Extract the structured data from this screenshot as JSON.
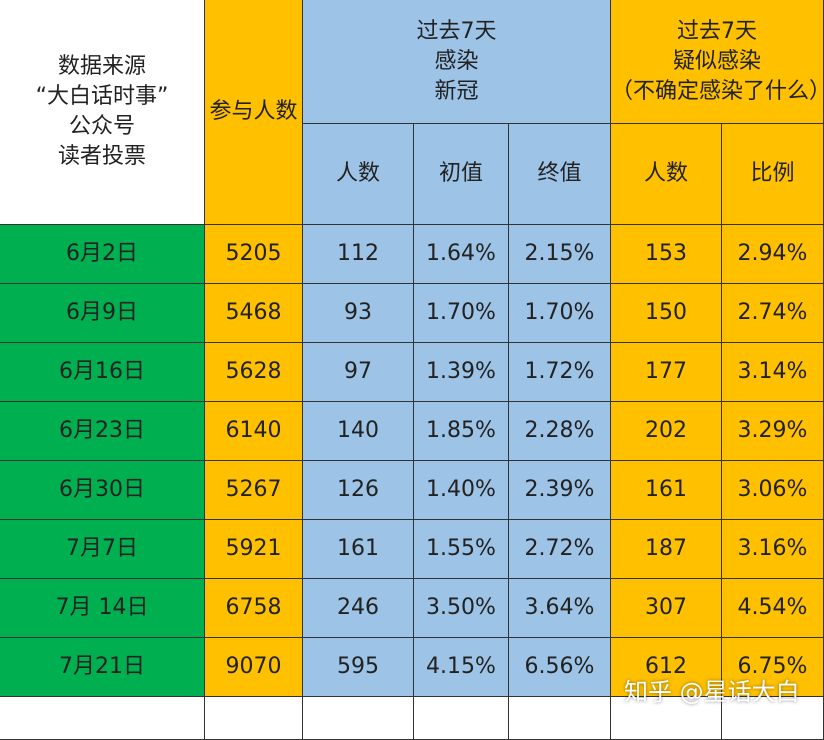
{
  "header": {
    "source": [
      "数据来源",
      "“大白话时事”",
      "公众号",
      "读者投票"
    ],
    "participants": "参与人数",
    "confirmed_group": [
      "过去7天",
      "感染",
      "新冠"
    ],
    "suspected_group": [
      "过去7天",
      "疑似感染",
      "（不确定感染了什么）"
    ],
    "sub": [
      "人数",
      "初值",
      "终值",
      "人数",
      "比例"
    ]
  },
  "table": {
    "rows": [
      [
        "6月2日",
        "5205",
        "112",
        "1.64%",
        "2.15%",
        "153",
        "2.94%"
      ],
      [
        "6月9日",
        "5468",
        "93",
        "1.70%",
        "1.70%",
        "150",
        "2.74%"
      ],
      [
        "6月16日",
        "5628",
        "97",
        "1.39%",
        "1.72%",
        "177",
        "3.14%"
      ],
      [
        "6月23日",
        "6140",
        "140",
        "1.85%",
        "2.28%",
        "202",
        "3.29%"
      ],
      [
        "6月30日",
        "5267",
        "126",
        "1.40%",
        "2.39%",
        "161",
        "3.06%"
      ],
      [
        "7月7日",
        "5921",
        "161",
        "1.55%",
        "2.72%",
        "187",
        "3.16%"
      ],
      [
        "7月 14日",
        "6758",
        "246",
        "3.50%",
        "3.64%",
        "307",
        "4.54%"
      ],
      [
        "7月21日",
        "9070",
        "595",
        "4.15%",
        "6.56%",
        "612",
        "6.75%"
      ]
    ]
  },
  "watermark": "知乎 @星话大白"
}
